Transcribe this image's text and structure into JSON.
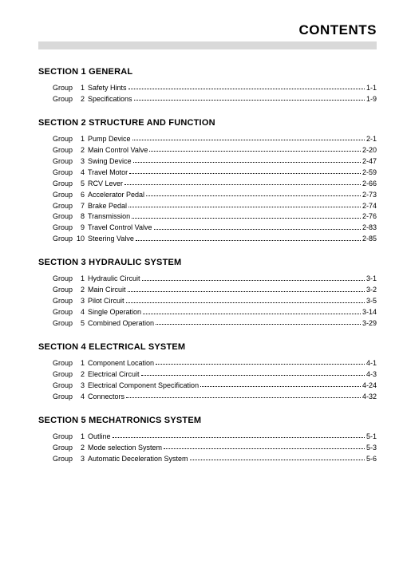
{
  "page_title": "CONTENTS",
  "group_word": "Group",
  "colors": {
    "background": "#ffffff",
    "text": "#000000",
    "band": "#d9d9d9"
  },
  "typography": {
    "title_fontsize": 17,
    "section_fontsize": 11,
    "row_fontsize": 9,
    "font_family": "Arial"
  },
  "sections": [
    {
      "title": "SECTION 1  GENERAL",
      "groups": [
        {
          "num": "1",
          "label": "Safety Hints",
          "page": "1-1"
        },
        {
          "num": "2",
          "label": "Specifications",
          "page": "1-9"
        }
      ]
    },
    {
      "title": "SECTION 2  STRUCTURE AND FUNCTION",
      "groups": [
        {
          "num": "1",
          "label": "Pump Device",
          "page": "2-1"
        },
        {
          "num": "2",
          "label": "Main Control Valve",
          "page": "2-20"
        },
        {
          "num": "3",
          "label": "Swing Device",
          "page": "2-47"
        },
        {
          "num": "4",
          "label": "Travel Motor",
          "page": "2-59"
        },
        {
          "num": "5",
          "label": "RCV Lever",
          "page": "2-66"
        },
        {
          "num": "6",
          "label": "Accelerator Pedal",
          "page": "2-73"
        },
        {
          "num": "7",
          "label": "Brake Pedal",
          "page": "2-74"
        },
        {
          "num": "8",
          "label": "Transmission",
          "page": "2-76"
        },
        {
          "num": "9",
          "label": "Travel Control Valve",
          "page": "2-83"
        },
        {
          "num": "10",
          "label": "Steering Valve",
          "page": "2-85"
        }
      ]
    },
    {
      "title": "SECTION 3  HYDRAULIC SYSTEM",
      "groups": [
        {
          "num": "1",
          "label": "Hydraulic Circuit",
          "page": "3-1"
        },
        {
          "num": "2",
          "label": "Main Circuit",
          "page": "3-2"
        },
        {
          "num": "3",
          "label": "Pilot Circuit",
          "page": "3-5"
        },
        {
          "num": "4",
          "label": "Single Operation",
          "page": "3-14"
        },
        {
          "num": "5",
          "label": "Combined Operation",
          "page": "3-29"
        }
      ]
    },
    {
      "title": "SECTION 4  ELECTRICAL SYSTEM",
      "groups": [
        {
          "num": "1",
          "label": "Component Location",
          "page": "4-1"
        },
        {
          "num": "2",
          "label": "Electrical Circuit",
          "page": "4-3"
        },
        {
          "num": "3",
          "label": "Electrical Component Specification",
          "page": "4-24"
        },
        {
          "num": "4",
          "label": "Connectors",
          "page": "4-32"
        }
      ]
    },
    {
      "title": "SECTION 5  MECHATRONICS SYSTEM",
      "groups": [
        {
          "num": "1",
          "label": "Outline",
          "page": "5-1"
        },
        {
          "num": "2",
          "label": "Mode selection System",
          "page": "5-3"
        },
        {
          "num": "3",
          "label": "Automatic Deceleration System",
          "page": "5-6"
        }
      ]
    }
  ]
}
